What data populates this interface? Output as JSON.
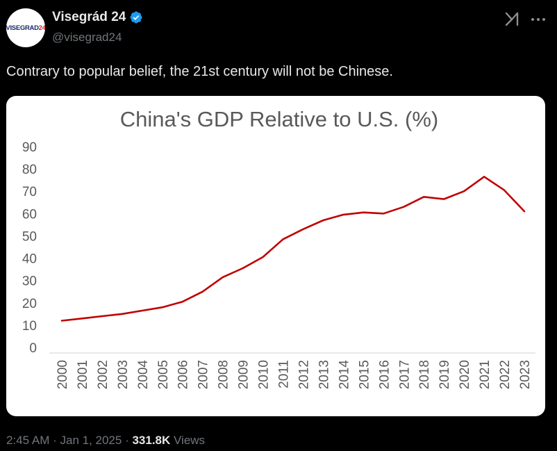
{
  "author": {
    "avatar_text": "VISEGRAD",
    "avatar_accent": "24",
    "display_name": "Visegrád 24",
    "handle": "@visegrad24"
  },
  "header_icons": [
    "grok-icon",
    "more-icon"
  ],
  "tweet": {
    "text": "Contrary to popular belief, the 21st century will not be Chinese."
  },
  "footer": {
    "time": "2:45 AM",
    "sep1": " · ",
    "date": "Jan 1, 2025",
    "sep2": " · ",
    "views_count": "331.8K",
    "views_label": " Views"
  },
  "colors": {
    "background": "#000000",
    "text": "#e7e9ea",
    "secondary_text": "#71767b",
    "verified": "#1d9bf0",
    "line": "#c00000"
  },
  "chart_data": {
    "type": "line",
    "title": "China's GDP Relative to U.S. (%)",
    "x": [
      "2000",
      "2001",
      "2002",
      "2003",
      "2004",
      "2005",
      "2006",
      "2007",
      "2008",
      "2009",
      "2010",
      "2011",
      "2012",
      "2013",
      "2014",
      "2015",
      "2016",
      "2017",
      "2018",
      "2019",
      "2020",
      "2021",
      "2022",
      "2023"
    ],
    "series": [
      {
        "values": [
          12,
          13,
          14,
          15,
          16.5,
          18,
          20.5,
          25,
          31.5,
          35.5,
          40.5,
          48.5,
          53,
          57,
          59.5,
          60.5,
          60,
          63,
          67.5,
          66.5,
          70,
          76.5,
          70.5,
          61
        ]
      }
    ],
    "ylim": [
      0,
      90
    ],
    "yticks": [
      0,
      10,
      20,
      30,
      40,
      50,
      60,
      70,
      80,
      90
    ],
    "grid": false,
    "legend": "none"
  }
}
